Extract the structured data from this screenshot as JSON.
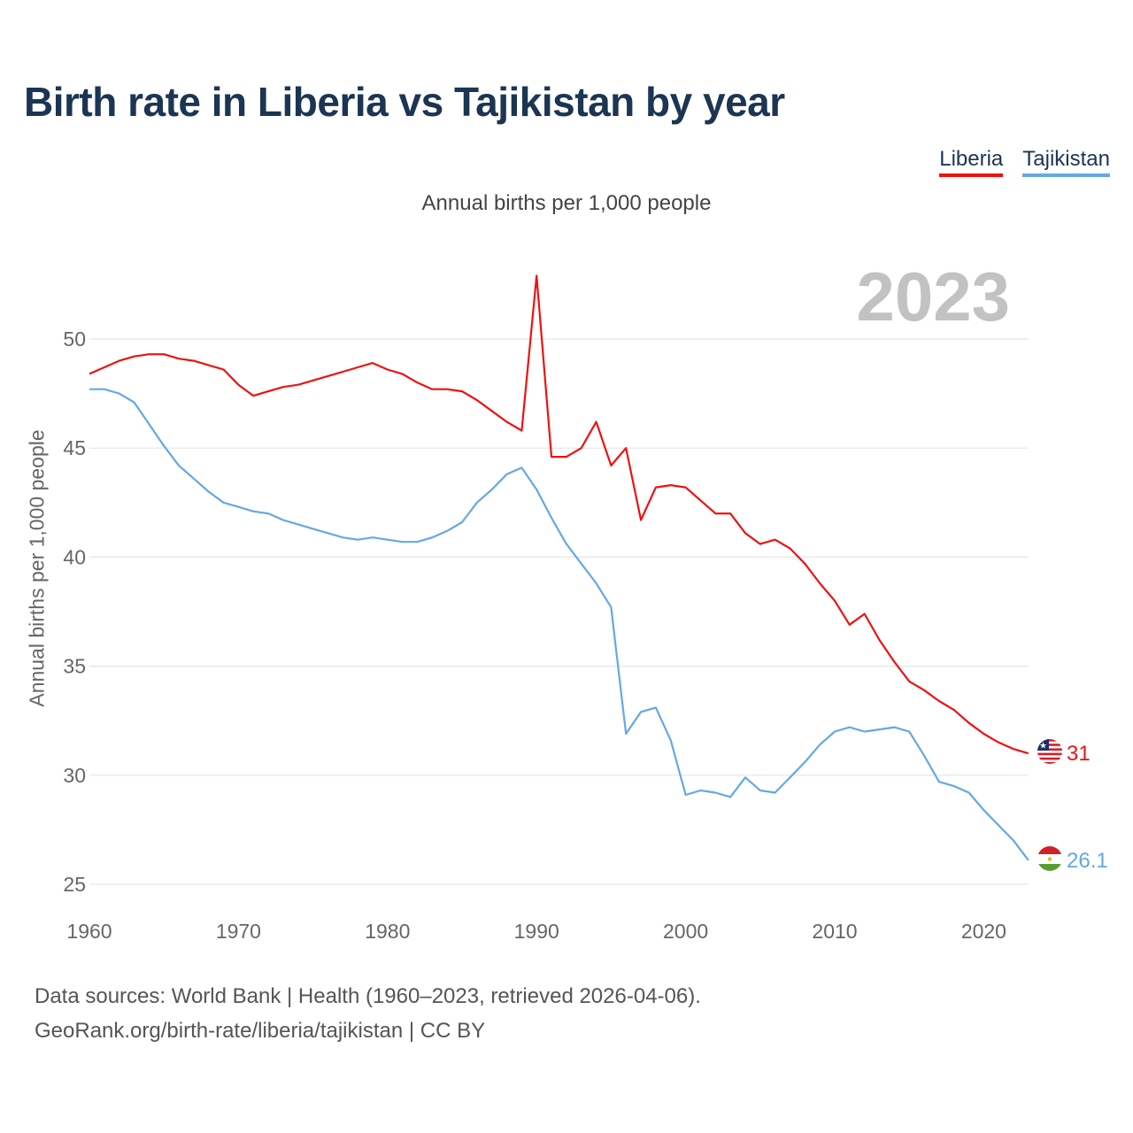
{
  "title": "Birth rate in Liberia vs Tajikistan by year",
  "subtitle": "Annual births per 1,000 people",
  "year_display": "2023",
  "legend": [
    {
      "name": "Liberia",
      "color": "#ee1111"
    },
    {
      "name": "Tajikistan",
      "color": "#64a8e6"
    }
  ],
  "source": {
    "line1": "Data sources: World Bank | Health (1960–2023, retrieved 2026-04-06).",
    "line2": "GeoRank.org/birth-rate/liberia/tajikistan | CC BY"
  },
  "chart_data": {
    "type": "line",
    "title": "Birth rate in Liberia vs Tajikistan by year",
    "xlabel": "",
    "ylabel": "Annual births per 1,000 people",
    "xlim": [
      1960,
      2023
    ],
    "ylim": [
      25,
      53
    ],
    "yticks": [
      25,
      30,
      35,
      40,
      45,
      50
    ],
    "xticks": [
      1960,
      1970,
      1980,
      1990,
      2000,
      2010,
      2020
    ],
    "grid": true,
    "legend_position": "top-right",
    "x": [
      1960,
      1961,
      1962,
      1963,
      1964,
      1965,
      1966,
      1967,
      1968,
      1969,
      1970,
      1971,
      1972,
      1973,
      1974,
      1975,
      1976,
      1977,
      1978,
      1979,
      1980,
      1981,
      1982,
      1983,
      1984,
      1985,
      1986,
      1987,
      1988,
      1989,
      1990,
      1991,
      1992,
      1993,
      1994,
      1995,
      1996,
      1997,
      1998,
      1999,
      2000,
      2001,
      2002,
      2003,
      2004,
      2005,
      2006,
      2007,
      2008,
      2009,
      2010,
      2011,
      2012,
      2013,
      2014,
      2015,
      2016,
      2017,
      2018,
      2019,
      2020,
      2021,
      2022,
      2023
    ],
    "series": [
      {
        "name": "Liberia",
        "color": "#ee1111",
        "end_label": "31",
        "flag": "liberia",
        "values": [
          48.4,
          48.7,
          49.0,
          49.2,
          49.3,
          49.3,
          49.1,
          49.0,
          48.8,
          48.6,
          47.9,
          47.4,
          47.6,
          47.8,
          47.9,
          48.1,
          48.3,
          48.5,
          48.7,
          48.9,
          48.6,
          48.4,
          48.0,
          47.7,
          47.7,
          47.6,
          47.2,
          46.7,
          46.2,
          45.8,
          52.9,
          44.6,
          44.6,
          45.0,
          46.2,
          44.2,
          45.0,
          41.7,
          43.2,
          43.3,
          43.2,
          42.6,
          42.0,
          42.0,
          41.1,
          40.6,
          40.8,
          40.4,
          39.7,
          38.8,
          38.0,
          36.9,
          37.4,
          36.2,
          35.2,
          34.3,
          33.9,
          33.4,
          33.0,
          32.4,
          31.9,
          31.5,
          31.2,
          31.0
        ]
      },
      {
        "name": "Tajikistan",
        "color": "#64a8e6",
        "end_label": "26.1",
        "flag": "tajikistan",
        "values": [
          47.7,
          47.7,
          47.5,
          47.1,
          46.1,
          45.1,
          44.2,
          43.6,
          43.0,
          42.5,
          42.3,
          42.1,
          42.0,
          41.7,
          41.5,
          41.3,
          41.1,
          40.9,
          40.8,
          40.9,
          40.8,
          40.7,
          40.7,
          40.9,
          41.2,
          41.6,
          42.5,
          43.1,
          43.8,
          44.1,
          43.1,
          41.8,
          40.6,
          39.7,
          38.8,
          37.7,
          31.9,
          32.9,
          33.1,
          31.6,
          29.1,
          29.3,
          29.2,
          29.0,
          29.9,
          29.3,
          29.2,
          29.9,
          30.6,
          31.4,
          32.0,
          32.2,
          32.0,
          32.1,
          32.2,
          32.0,
          30.9,
          29.7,
          29.5,
          29.2,
          28.4,
          27.7,
          27.0,
          26.1
        ]
      }
    ]
  }
}
